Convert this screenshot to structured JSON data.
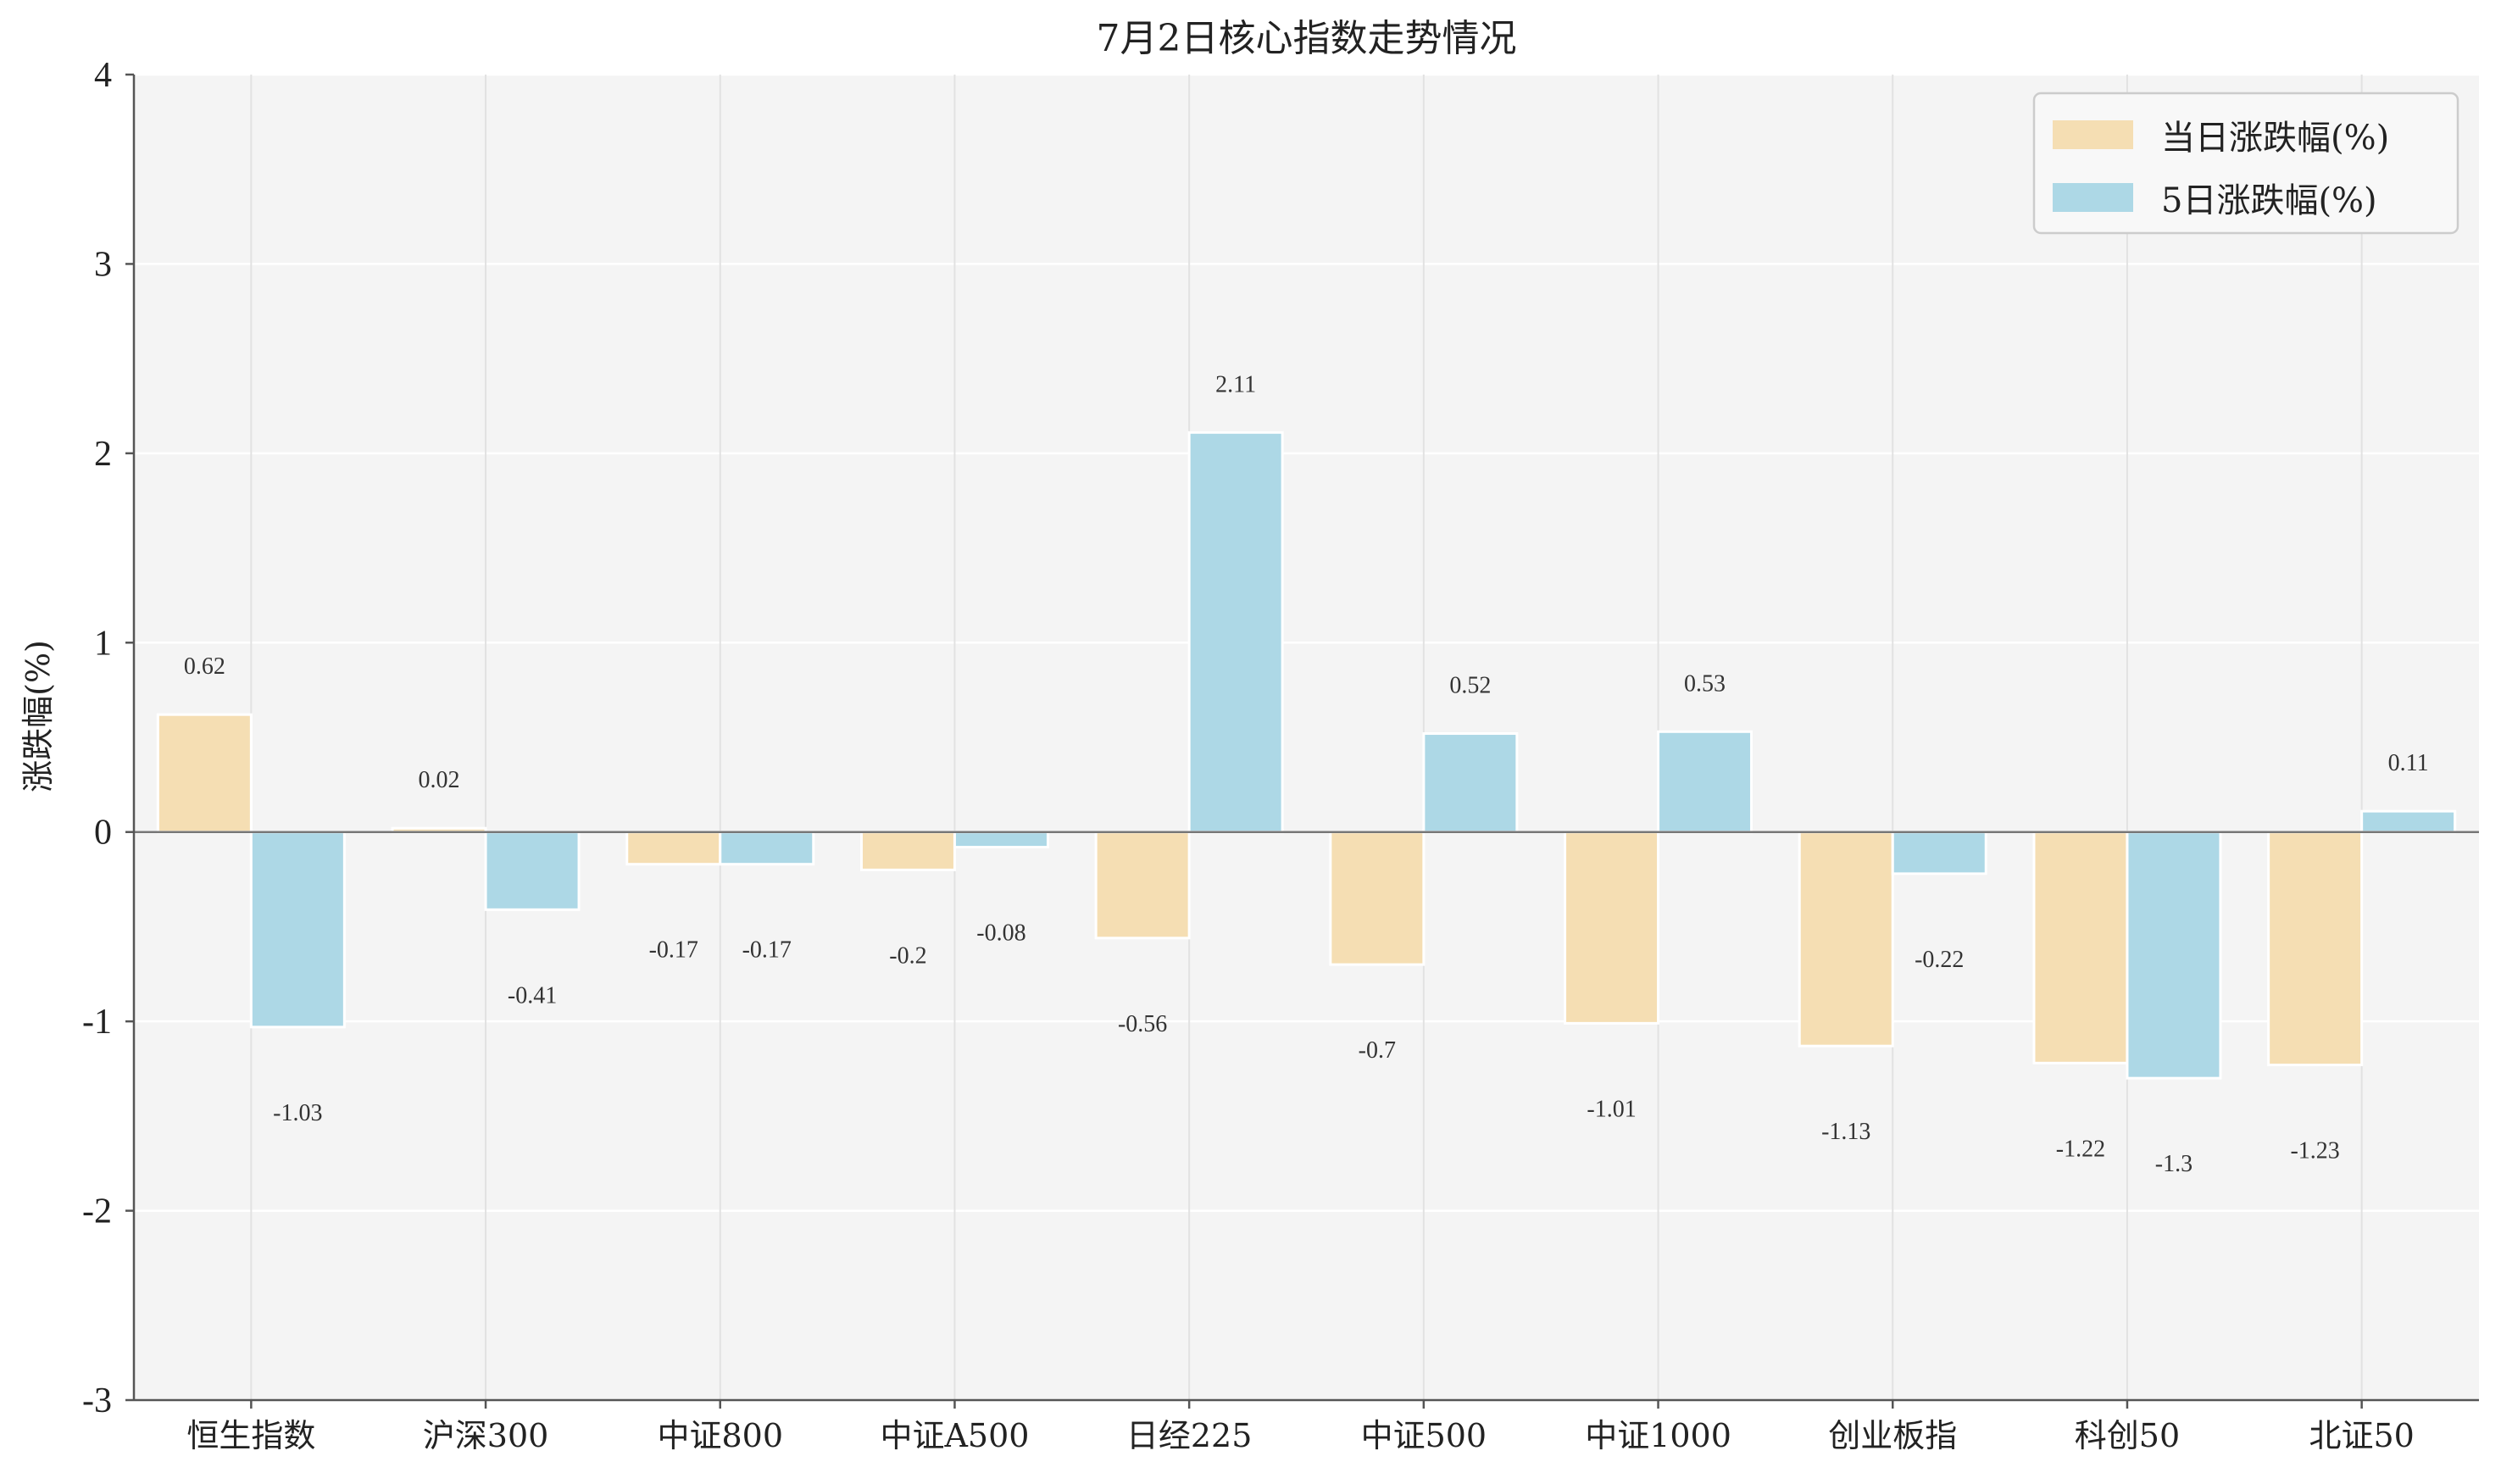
{
  "chart_data": {
    "type": "bar",
    "title": "7月2日核心指数走势情况",
    "ylabel": "涨跌幅(%)",
    "xlabel": "",
    "ylim": [
      -3,
      4
    ],
    "yticks": [
      4,
      3,
      2,
      1,
      0,
      -1,
      -2,
      -3
    ],
    "grid": true,
    "legend_position": "top-right",
    "categories": [
      "恒生指数",
      "沪深300",
      "中证800",
      "中证A500",
      "日经225",
      "中证500",
      "中证1000",
      "创业板指",
      "科创50",
      "北证50"
    ],
    "series": [
      {
        "name": "当日涨跌幅(%)",
        "color": "#f5deb3",
        "values": [
          0.62,
          0.02,
          -0.17,
          -0.2,
          -0.56,
          -0.7,
          -1.01,
          -1.13,
          -1.22,
          -1.23
        ]
      },
      {
        "name": "5日涨跌幅(%)",
        "color": "#add8e6",
        "values": [
          -1.03,
          -0.41,
          -0.17,
          -0.08,
          2.11,
          0.52,
          0.53,
          -0.22,
          -1.3,
          0.11
        ]
      }
    ]
  }
}
